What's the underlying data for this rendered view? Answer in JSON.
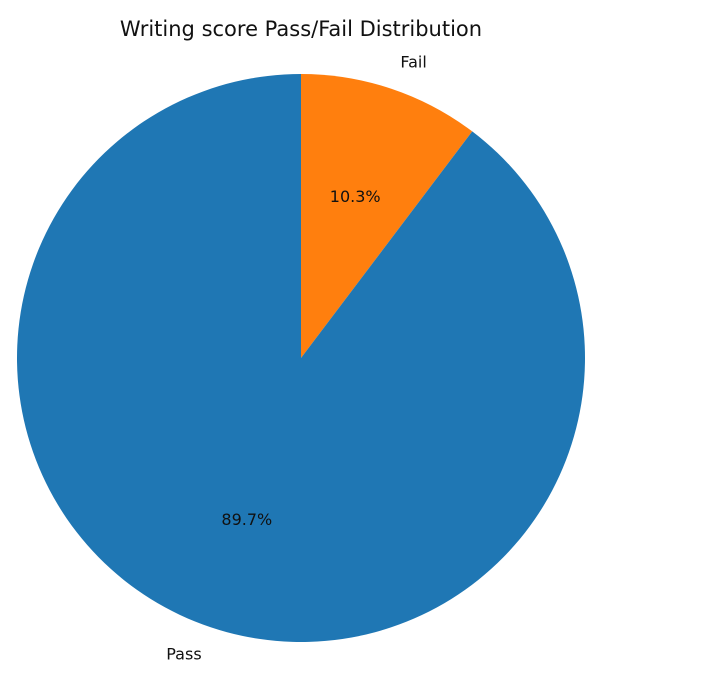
{
  "chart_data": {
    "type": "pie",
    "title": "Writing score Pass/Fail Distribution",
    "categories": [
      "Fail",
      "Pass"
    ],
    "values": [
      10.3,
      89.7
    ],
    "value_labels": [
      "10.3%",
      "89.7%"
    ],
    "colors": [
      "#ff7f0e",
      "#1f77b4"
    ],
    "start_angle_deg": 90,
    "direction": "clockwise"
  }
}
